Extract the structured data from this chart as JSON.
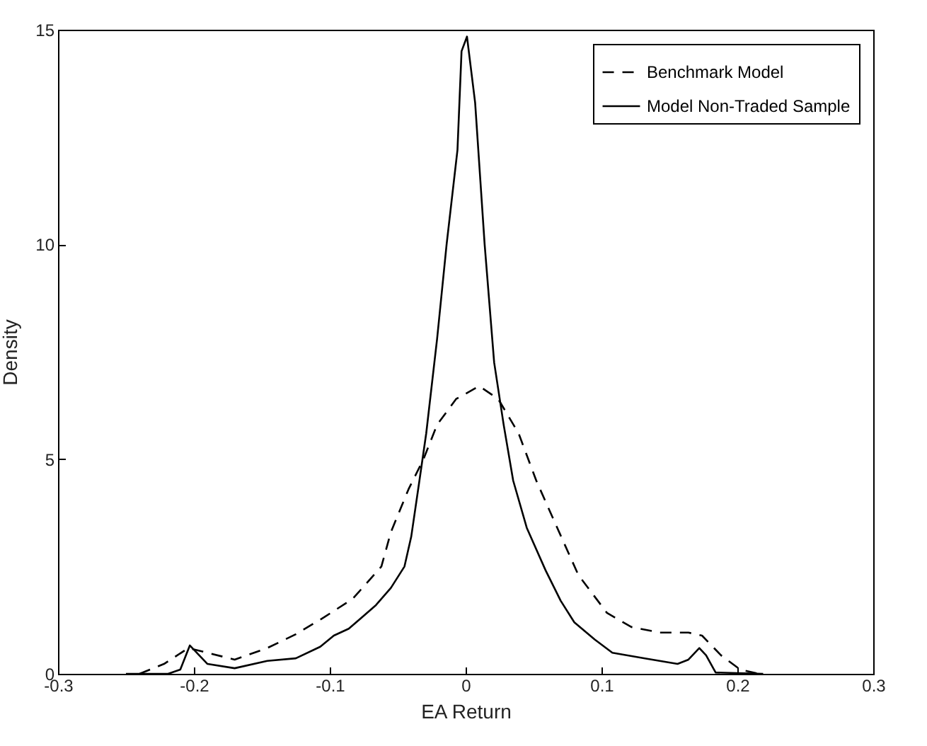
{
  "chart_data": {
    "type": "line",
    "xlabel": "EA Return",
    "ylabel": "Density",
    "xlim": [
      -0.3,
      0.3
    ],
    "xticks": [
      -0.3,
      -0.2,
      -0.1,
      0,
      0.1,
      0.2,
      0.3
    ],
    "ylim": [
      0,
      15
    ],
    "yticks": [
      0,
      5,
      10,
      15
    ],
    "grid": false,
    "legend": "top right",
    "marker": "none",
    "series": [
      {
        "name": "Benchmark Model",
        "color": "#000000",
        "line_style": "dashed",
        "x": [
          -0.24,
          -0.222,
          -0.204,
          -0.19,
          -0.17,
          -0.146,
          -0.125,
          -0.104,
          -0.083,
          -0.062,
          -0.055,
          -0.042,
          -0.031,
          -0.021,
          -0.007,
          0.01,
          0.024,
          0.039,
          0.052,
          0.066,
          0.083,
          0.104,
          0.122,
          0.143,
          0.164,
          0.174,
          0.188,
          0.202,
          0.216
        ],
        "values": [
          0,
          0.23,
          0.6,
          0.49,
          0.33,
          0.6,
          0.92,
          1.32,
          1.75,
          2.5,
          3.3,
          4.3,
          5.0,
          5.8,
          6.4,
          6.7,
          6.4,
          5.6,
          4.5,
          3.5,
          2.3,
          1.42,
          1.09,
          0.96,
          0.96,
          0.89,
          0.43,
          0.1,
          0
        ]
      },
      {
        "name": "Model Non-Traded Sample",
        "color": "#000000",
        "line_style": "solid",
        "x": [
          -0.25,
          -0.219,
          -0.21,
          -0.203,
          -0.19,
          -0.17,
          -0.146,
          -0.125,
          -0.107,
          -0.097,
          -0.086,
          -0.066,
          -0.055,
          -0.045,
          -0.04,
          -0.034,
          -0.029,
          -0.021,
          -0.014,
          -0.006,
          -0.003,
          0.001,
          0.007,
          0.014,
          0.021,
          0.028,
          0.035,
          0.045,
          0.059,
          0.07,
          0.08,
          0.095,
          0.108,
          0.132,
          0.156,
          0.164,
          0.172,
          0.177,
          0.184,
          0.219
        ],
        "values": [
          0,
          0,
          0.1,
          0.66,
          0.23,
          0.13,
          0.3,
          0.36,
          0.63,
          0.89,
          1.05,
          1.6,
          2.0,
          2.5,
          3.2,
          4.5,
          5.6,
          7.8,
          10,
          12.2,
          14.5,
          14.84,
          13.3,
          10,
          7.25,
          5.8,
          4.5,
          3.4,
          2.4,
          1.7,
          1.2,
          0.8,
          0.49,
          0.36,
          0.23,
          0.33,
          0.6,
          0.43,
          0.03,
          0
        ]
      }
    ]
  }
}
